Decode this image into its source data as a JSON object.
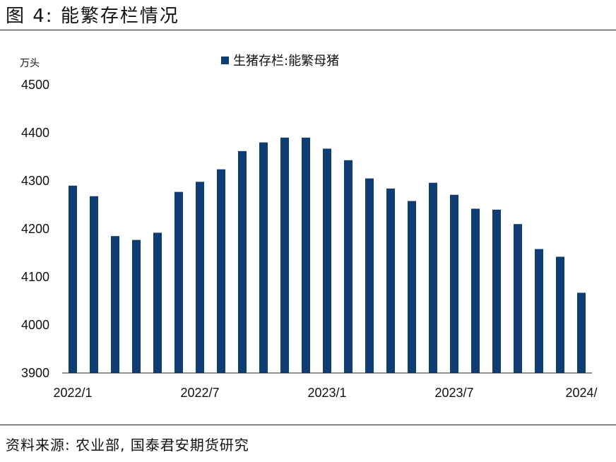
{
  "header": {
    "figure_title": "图 4: 能繁存栏情况"
  },
  "footer": {
    "source": "资料来源: 农业部, 国泰君安期货研究"
  },
  "chart_data": {
    "type": "bar",
    "title": "",
    "ylabel": "万头",
    "xlabel": "",
    "legend_position": "top-center",
    "grid": false,
    "ylim": [
      3900,
      4500
    ],
    "yticks": [
      4500,
      4400,
      4300,
      4200,
      4100,
      4000,
      3900
    ],
    "x_tick_labels": [
      {
        "index": 0,
        "label": "2022/1"
      },
      {
        "index": 6,
        "label": "2022/7"
      },
      {
        "index": 12,
        "label": "2023/1"
      },
      {
        "index": 18,
        "label": "2023/7"
      },
      {
        "index": 24,
        "label": "2024/"
      }
    ],
    "categories": [
      "2022/1",
      "2022/2",
      "2022/3",
      "2022/4",
      "2022/5",
      "2022/6",
      "2022/7",
      "2022/8",
      "2022/9",
      "2022/10",
      "2022/11",
      "2022/12",
      "2023/1",
      "2023/2",
      "2023/3",
      "2023/4",
      "2023/5",
      "2023/6",
      "2023/7",
      "2023/8",
      "2023/9",
      "2023/10",
      "2023/11",
      "2023/12",
      "2024/1"
    ],
    "series": [
      {
        "name": "生猪存栏:能繁母猪",
        "color": "#0d3d73",
        "values": [
          4290,
          4268,
          4185,
          4177,
          4192,
          4277,
          4298,
          4324,
          4362,
          4380,
          4390,
          4390,
          4367,
          4343,
          4305,
          4284,
          4258,
          4296,
          4271,
          4242,
          4240,
          4210,
          4158,
          4142,
          4067
        ]
      }
    ]
  }
}
